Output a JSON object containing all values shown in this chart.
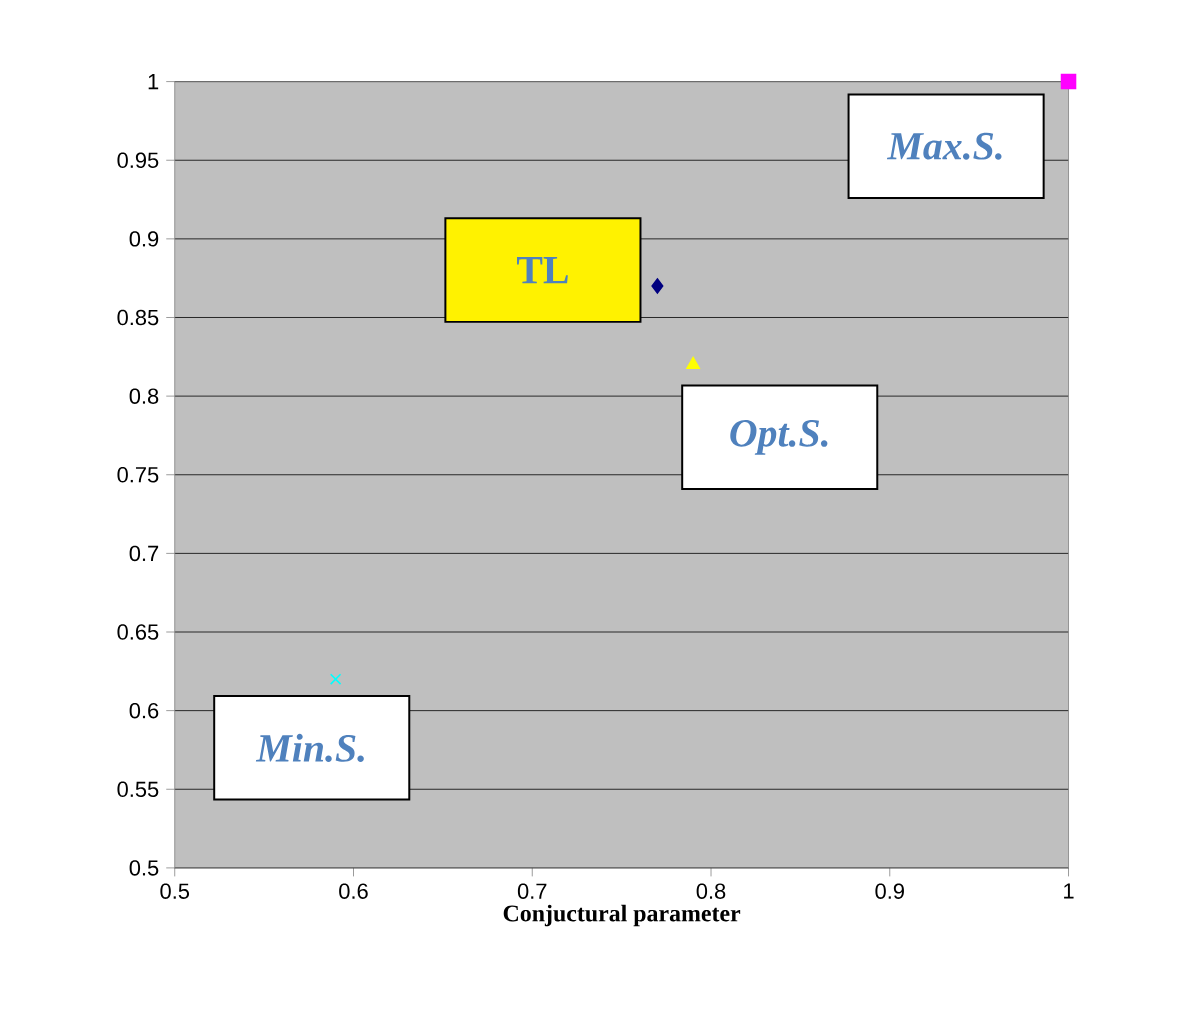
{
  "chart_data": {
    "type": "scatter",
    "xlabel": "Conjuctural parameter",
    "xlim": [
      0.5,
      1
    ],
    "ylim": [
      0.5,
      1
    ],
    "xticks": [
      0.5,
      0.6,
      0.7,
      0.8,
      0.9,
      1
    ],
    "yticks": [
      0.5,
      0.55,
      0.6,
      0.65,
      0.7,
      0.75,
      0.8,
      0.85,
      0.9,
      0.95,
      1
    ],
    "grid": "y",
    "series": [
      {
        "color": "#000080",
        "marker": "diamond",
        "x": [
          0.77
        ],
        "values": [
          0.87
        ]
      },
      {
        "color": "#ffff00",
        "marker": "triangle",
        "x": [
          0.79
        ],
        "values": [
          0.82
        ]
      },
      {
        "color": "#ff00ff",
        "marker": "square",
        "x": [
          1
        ],
        "values": [
          1
        ]
      },
      {
        "color": "#00ffff",
        "marker": "cross",
        "x": [
          0.59
        ],
        "values": [
          0.62
        ]
      }
    ],
    "annotations": [
      {
        "text": "TL",
        "x": 0.77,
        "y": 0.87
      },
      {
        "text": "Opt.S.",
        "x": 0.79,
        "y": 0.82
      },
      {
        "text": "Max.S.",
        "x": 1,
        "y": 1
      },
      {
        "text": "Min.S.",
        "x": 0.59,
        "y": 0.62
      }
    ]
  }
}
